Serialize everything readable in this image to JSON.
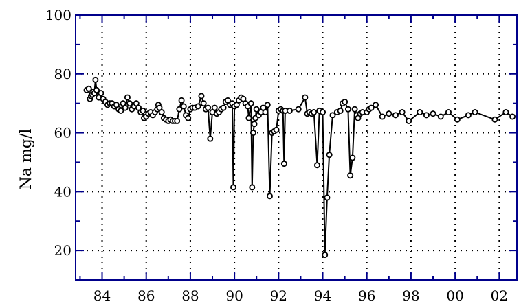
{
  "chart_data": {
    "type": "scatter",
    "ylabel": "Na  mg/l",
    "xlabel": "",
    "xlim": [
      1982.8,
      2002.8
    ],
    "ylim": [
      10,
      100
    ],
    "x_ticks": [
      "84",
      "86",
      "88",
      "90",
      "92",
      "94",
      "96",
      "98",
      "00",
      "02"
    ],
    "x_tick_values": [
      1984,
      1986,
      1988,
      1990,
      1992,
      1994,
      1996,
      1998,
      2000,
      2002
    ],
    "y_ticks": [
      "20",
      "40",
      "60",
      "80",
      "100"
    ],
    "y_tick_values": [
      20,
      40,
      60,
      80,
      100
    ],
    "grid": true,
    "frame_color": "#00008b",
    "line_color": "#000000",
    "series": [
      {
        "name": "",
        "style": "line-with-open-circles",
        "points": [
          [
            1983.3,
            74.5
          ],
          [
            1983.4,
            75.0
          ],
          [
            1983.45,
            71.5
          ],
          [
            1983.5,
            72.5
          ],
          [
            1983.55,
            73.0
          ],
          [
            1983.6,
            74.0
          ],
          [
            1983.65,
            73.5
          ],
          [
            1983.7,
            78.0
          ],
          [
            1983.75,
            74.5
          ],
          [
            1983.85,
            72.0
          ],
          [
            1983.95,
            73.5
          ],
          [
            1984.05,
            71.5
          ],
          [
            1984.15,
            70.5
          ],
          [
            1984.25,
            69.5
          ],
          [
            1984.35,
            70.0
          ],
          [
            1984.45,
            70.0
          ],
          [
            1984.55,
            69.0
          ],
          [
            1984.65,
            69.5
          ],
          [
            1984.75,
            68.0
          ],
          [
            1984.85,
            67.5
          ],
          [
            1984.95,
            70.0
          ],
          [
            1985.05,
            68.5
          ],
          [
            1985.15,
            72.0
          ],
          [
            1985.25,
            70.0
          ],
          [
            1985.35,
            68.0
          ],
          [
            1985.45,
            69.0
          ],
          [
            1985.55,
            70.0
          ],
          [
            1985.65,
            68.5
          ],
          [
            1985.75,
            67.0
          ],
          [
            1985.85,
            67.5
          ],
          [
            1985.9,
            65.0
          ],
          [
            1986.0,
            65.5
          ],
          [
            1986.1,
            66.5
          ],
          [
            1986.2,
            67.0
          ],
          [
            1986.3,
            66.0
          ],
          [
            1986.4,
            67.0
          ],
          [
            1986.5,
            68.0
          ],
          [
            1986.55,
            69.5
          ],
          [
            1986.6,
            68.5
          ],
          [
            1986.7,
            67.0
          ],
          [
            1986.8,
            65.0
          ],
          [
            1986.9,
            64.5
          ],
          [
            1987.0,
            64.0
          ],
          [
            1987.1,
            64.5
          ],
          [
            1987.2,
            64.0
          ],
          [
            1987.3,
            64.0
          ],
          [
            1987.4,
            64.0
          ],
          [
            1987.5,
            68.0
          ],
          [
            1987.6,
            71.0
          ],
          [
            1987.7,
            69.0
          ],
          [
            1987.8,
            66.0
          ],
          [
            1987.9,
            65.0
          ],
          [
            1988.0,
            68.0
          ],
          [
            1988.1,
            68.5
          ],
          [
            1988.2,
            68.5
          ],
          [
            1988.35,
            69.0
          ],
          [
            1988.5,
            72.5
          ],
          [
            1988.6,
            70.0
          ],
          [
            1988.7,
            68.0
          ],
          [
            1988.8,
            68.5
          ],
          [
            1988.9,
            58.0
          ],
          [
            1989.0,
            67.0
          ],
          [
            1989.1,
            68.5
          ],
          [
            1989.2,
            66.5
          ],
          [
            1989.3,
            67.0
          ],
          [
            1989.4,
            68.0
          ],
          [
            1989.5,
            68.5
          ],
          [
            1989.6,
            70.5
          ],
          [
            1989.7,
            71.0
          ],
          [
            1989.8,
            69.5
          ],
          [
            1989.9,
            70.0
          ],
          [
            1989.95,
            41.5
          ],
          [
            1990.0,
            69.0
          ],
          [
            1990.1,
            69.5
          ],
          [
            1990.2,
            71.0
          ],
          [
            1990.3,
            72.0
          ],
          [
            1990.4,
            71.5
          ],
          [
            1990.5,
            70.0
          ],
          [
            1990.6,
            69.0
          ],
          [
            1990.65,
            65.0
          ],
          [
            1990.75,
            70.0
          ],
          [
            1990.8,
            41.5
          ],
          [
            1990.85,
            60.0
          ],
          [
            1990.9,
            63.0
          ],
          [
            1990.95,
            65.0
          ],
          [
            1991.0,
            68.0
          ],
          [
            1991.1,
            66.0
          ],
          [
            1991.2,
            67.0
          ],
          [
            1991.3,
            68.5
          ],
          [
            1991.4,
            67.0
          ],
          [
            1991.5,
            69.5
          ],
          [
            1991.6,
            38.5
          ],
          [
            1991.7,
            60.0
          ],
          [
            1991.8,
            60.5
          ],
          [
            1991.9,
            61.0
          ],
          [
            1992.0,
            67.5
          ],
          [
            1992.1,
            68.0
          ],
          [
            1992.2,
            67.5
          ],
          [
            1992.25,
            49.5
          ],
          [
            1992.3,
            67.5
          ],
          [
            1992.5,
            67.5
          ],
          [
            1992.9,
            68.0
          ],
          [
            1993.2,
            72.0
          ],
          [
            1993.3,
            66.5
          ],
          [
            1993.4,
            67.0
          ],
          [
            1993.5,
            66.5
          ],
          [
            1993.6,
            67.0
          ],
          [
            1993.75,
            49.0
          ],
          [
            1993.85,
            67.5
          ],
          [
            1994.0,
            67.0
          ],
          [
            1994.1,
            18.5
          ],
          [
            1994.2,
            38.0
          ],
          [
            1994.3,
            52.5
          ],
          [
            1994.45,
            66.0
          ],
          [
            1994.65,
            67.0
          ],
          [
            1994.8,
            67.5
          ],
          [
            1994.9,
            70.0
          ],
          [
            1995.0,
            70.5
          ],
          [
            1995.15,
            68.0
          ],
          [
            1995.25,
            45.5
          ],
          [
            1995.35,
            51.5
          ],
          [
            1995.45,
            68.0
          ],
          [
            1995.55,
            66.0
          ],
          [
            1995.6,
            65.0
          ],
          [
            1995.7,
            66.5
          ],
          [
            1995.8,
            67.0
          ],
          [
            1996.0,
            67.0
          ],
          [
            1996.1,
            68.0
          ],
          [
            1996.2,
            68.5
          ],
          [
            1996.4,
            69.5
          ],
          [
            1996.7,
            65.5
          ],
          [
            1997.0,
            66.5
          ],
          [
            1997.3,
            66.0
          ],
          [
            1997.6,
            67.0
          ],
          [
            1997.9,
            64.0
          ],
          [
            1998.4,
            67.0
          ],
          [
            1998.7,
            66.0
          ],
          [
            1999.0,
            66.5
          ],
          [
            1999.35,
            65.5
          ],
          [
            1999.7,
            67.0
          ],
          [
            2000.1,
            64.5
          ],
          [
            2000.6,
            66.0
          ],
          [
            2000.9,
            67.0
          ],
          [
            2001.8,
            64.5
          ],
          [
            2002.3,
            67.0
          ],
          [
            2002.6,
            65.5
          ]
        ]
      }
    ]
  }
}
